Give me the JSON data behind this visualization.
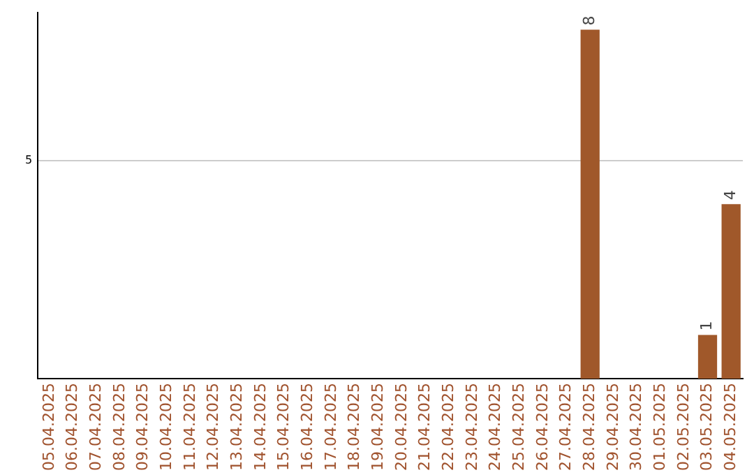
{
  "chart_data": {
    "type": "bar",
    "categories": [
      "05.04.2025",
      "06.04.2025",
      "07.04.2025",
      "08.04.2025",
      "09.04.2025",
      "10.04.2025",
      "11.04.2025",
      "12.04.2025",
      "13.04.2025",
      "14.04.2025",
      "15.04.2025",
      "16.04.2025",
      "17.04.2025",
      "18.04.2025",
      "19.04.2025",
      "20.04.2025",
      "21.04.2025",
      "22.04.2025",
      "23.04.2025",
      "24.04.2025",
      "25.04.2025",
      "26.04.2025",
      "27.04.2025",
      "28.04.2025",
      "29.04.2025",
      "30.04.2025",
      "01.05.2025",
      "02.05.2025",
      "03.05.2025",
      "04.05.2025"
    ],
    "values": [
      null,
      null,
      null,
      null,
      null,
      null,
      null,
      null,
      null,
      null,
      null,
      null,
      null,
      null,
      null,
      null,
      null,
      null,
      null,
      null,
      null,
      null,
      null,
      8,
      null,
      null,
      null,
      null,
      1,
      4
    ],
    "value_labels": [
      null,
      null,
      null,
      null,
      null,
      null,
      null,
      null,
      null,
      null,
      null,
      null,
      null,
      null,
      null,
      null,
      null,
      null,
      null,
      null,
      null,
      null,
      null,
      "8",
      null,
      null,
      null,
      null,
      "1",
      "4"
    ],
    "color": "#a0582a",
    "ylim": [
      0,
      8.4
    ],
    "yticks": [
      5
    ],
    "grid": "y",
    "legend": false
  }
}
